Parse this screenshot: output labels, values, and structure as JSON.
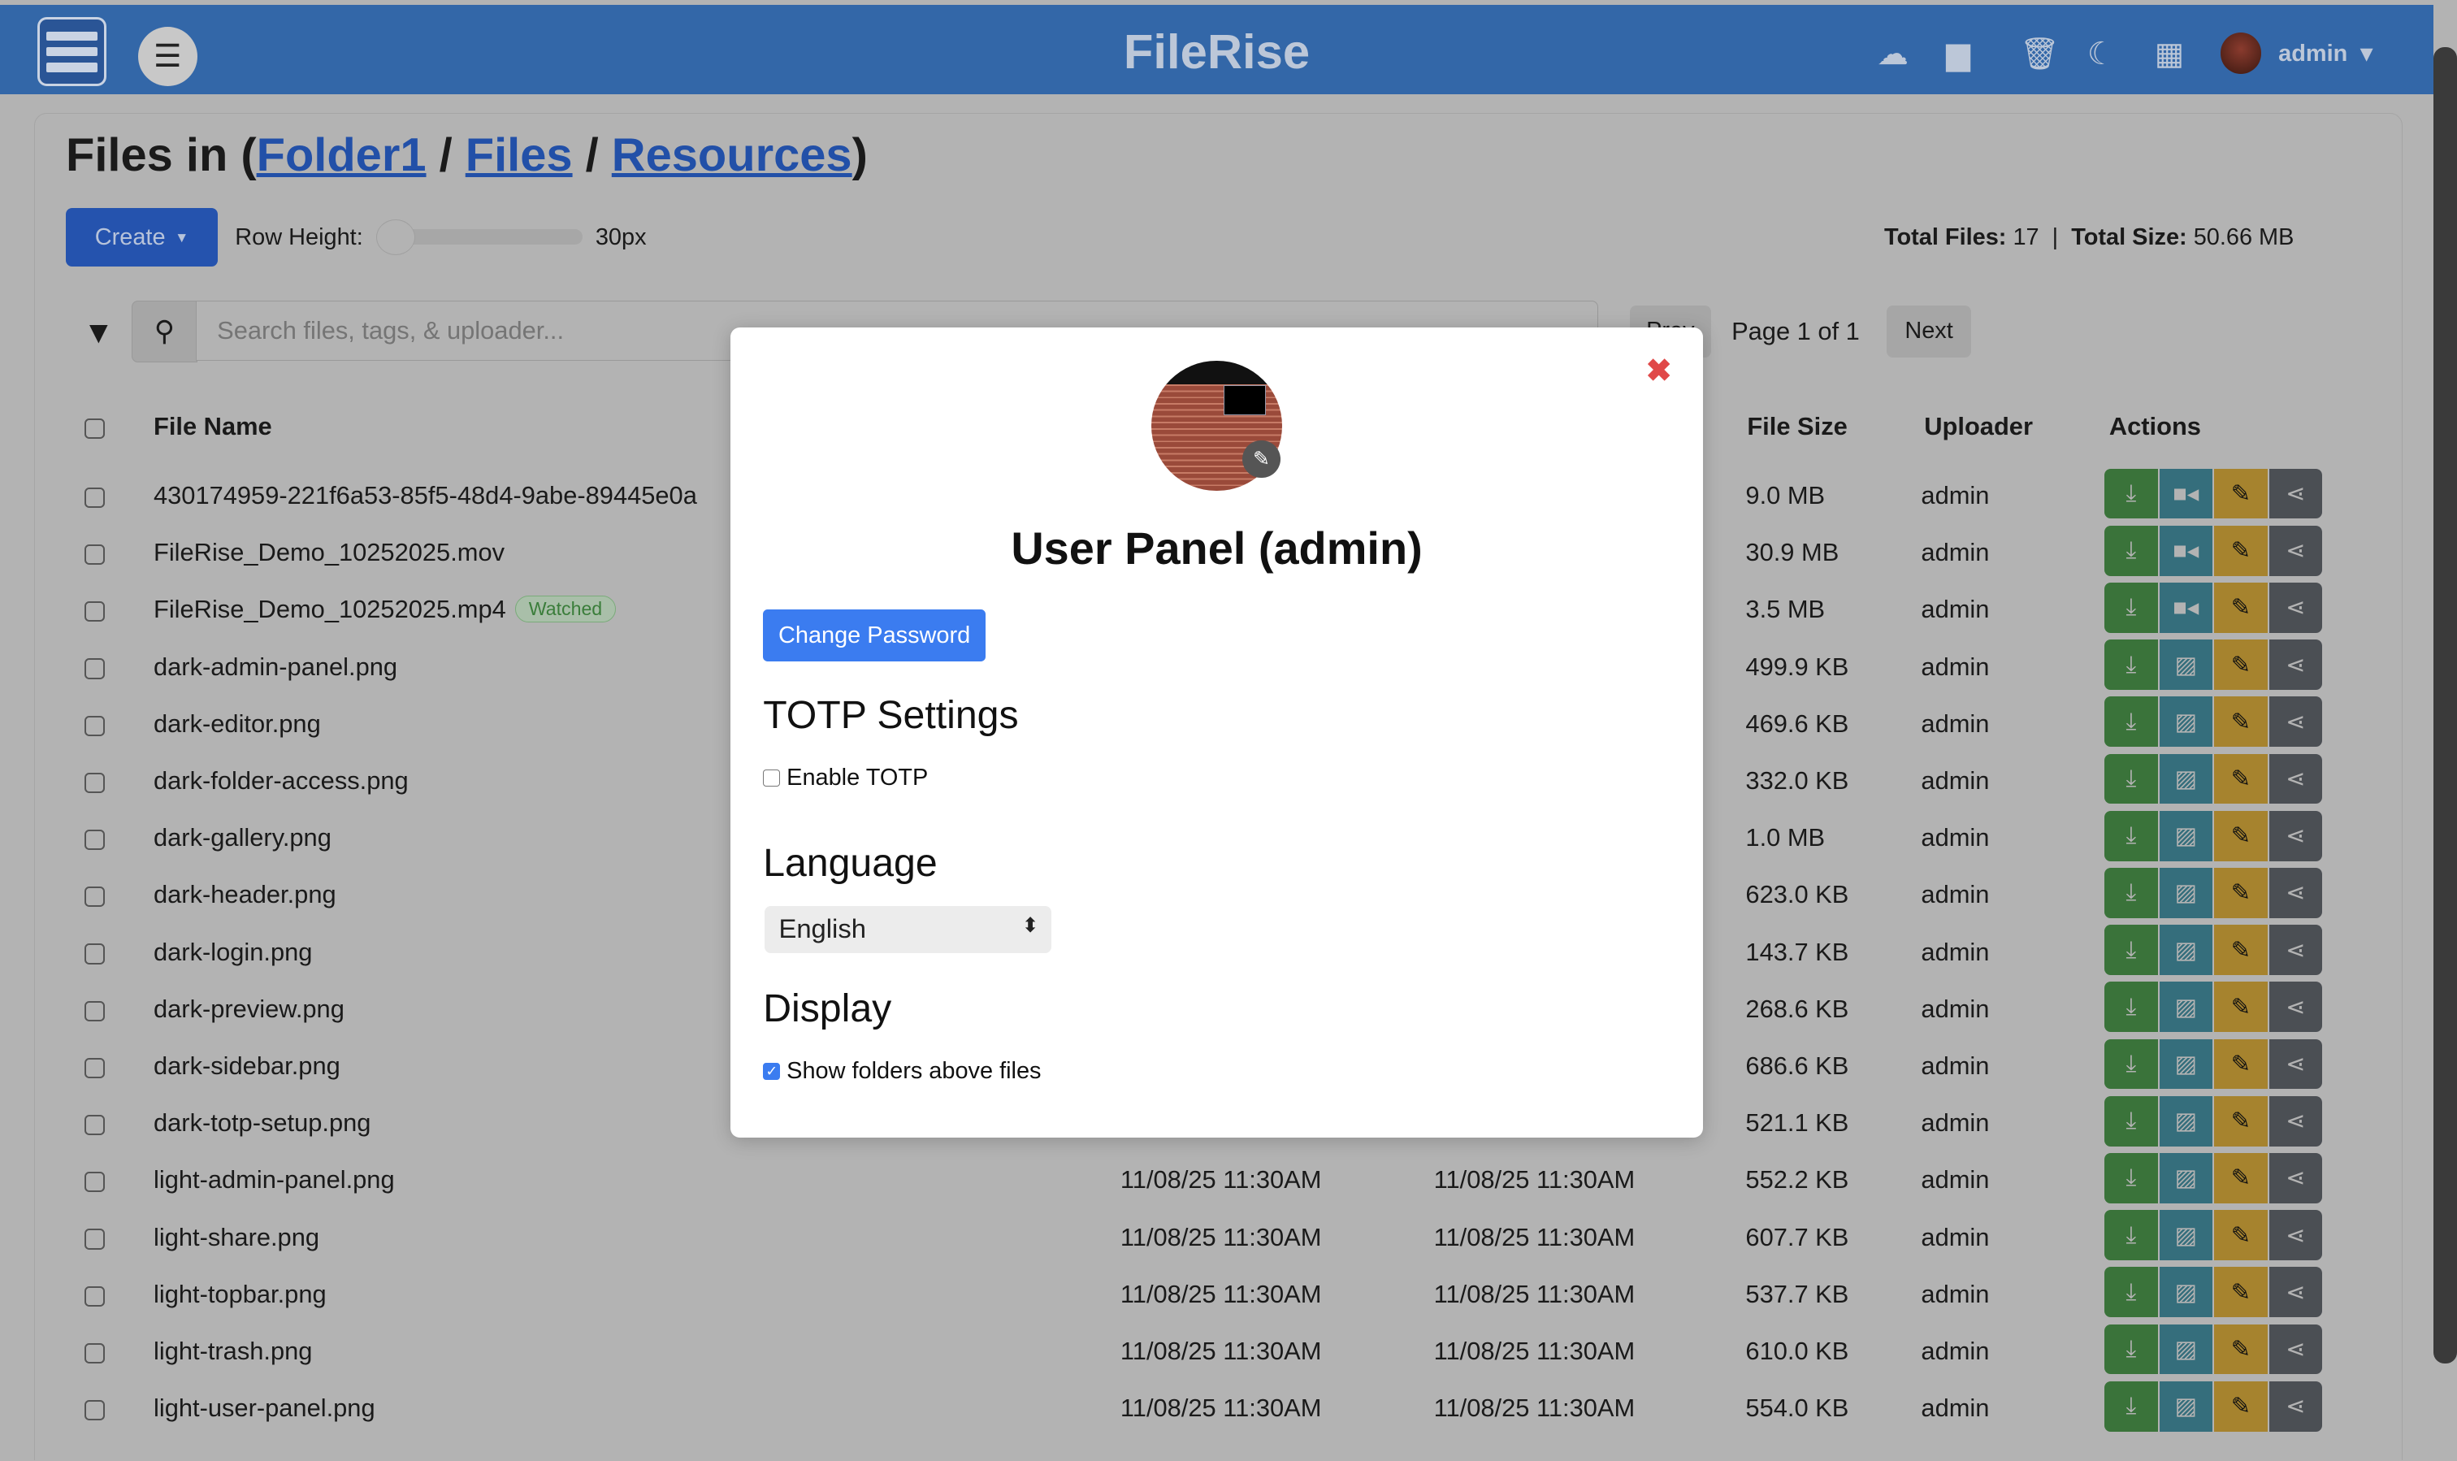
{
  "app": {
    "title": "FileRise",
    "user": "admin"
  },
  "header": {
    "icons": [
      "upload-cloud-icon",
      "folder-icon",
      "trash-icon",
      "moon-icon",
      "grid-icon"
    ]
  },
  "breadcrumb": {
    "prefix": "Files in (",
    "items": [
      "Folder1",
      "Files",
      "Resources"
    ],
    "separator": " / ",
    "suffix": ")"
  },
  "toolbar": {
    "create_label": "Create",
    "row_height_label": "Row Height:",
    "row_height_value": "30px",
    "total_files_label": "Total Files:",
    "total_files": "17",
    "total_size_label": "Total Size:",
    "total_size": "50.66 MB"
  },
  "search": {
    "placeholder": "Search files, tags, & uploader..."
  },
  "pagination": {
    "prev": "Prev",
    "page": "Page 1 of 1",
    "next": "Next"
  },
  "table": {
    "headers": {
      "name": "File Name",
      "size": "File Size",
      "uploader": "Uploader",
      "actions": "Actions"
    },
    "rows": [
      {
        "name": "430174959-221f6a53-85f5-48d4-9abe-89445e0a",
        "size": "9.0 MB",
        "uploader": "admin",
        "type": "video"
      },
      {
        "name": "FileRise_Demo_10252025.mov",
        "size": "30.9 MB",
        "uploader": "admin",
        "type": "video"
      },
      {
        "name": "FileRise_Demo_10252025.mp4",
        "badge": "Watched",
        "size": "3.5 MB",
        "uploader": "admin",
        "type": "video"
      },
      {
        "name": "dark-admin-panel.png",
        "size": "499.9 KB",
        "uploader": "admin",
        "type": "image"
      },
      {
        "name": "dark-editor.png",
        "size": "469.6 KB",
        "uploader": "admin",
        "type": "image"
      },
      {
        "name": "dark-folder-access.png",
        "size": "332.0 KB",
        "uploader": "admin",
        "type": "image"
      },
      {
        "name": "dark-gallery.png",
        "size": "1.0 MB",
        "uploader": "admin",
        "type": "image"
      },
      {
        "name": "dark-header.png",
        "size": "623.0 KB",
        "uploader": "admin",
        "type": "image"
      },
      {
        "name": "dark-login.png",
        "size": "143.7 KB",
        "uploader": "admin",
        "type": "image"
      },
      {
        "name": "dark-preview.png",
        "size": "268.6 KB",
        "uploader": "admin",
        "type": "image"
      },
      {
        "name": "dark-sidebar.png",
        "size": "686.6 KB",
        "uploader": "admin",
        "type": "image"
      },
      {
        "name": "dark-totp-setup.png",
        "size": "521.1 KB",
        "uploader": "admin",
        "type": "image"
      },
      {
        "name": "light-admin-panel.png",
        "created": "11/08/25 11:30AM",
        "modified": "11/08/25 11:30AM",
        "size": "552.2 KB",
        "uploader": "admin",
        "type": "image"
      },
      {
        "name": "light-share.png",
        "created": "11/08/25 11:30AM",
        "modified": "11/08/25 11:30AM",
        "size": "607.7 KB",
        "uploader": "admin",
        "type": "image"
      },
      {
        "name": "light-topbar.png",
        "created": "11/08/25 11:30AM",
        "modified": "11/08/25 11:30AM",
        "size": "537.7 KB",
        "uploader": "admin",
        "type": "image"
      },
      {
        "name": "light-trash.png",
        "created": "11/08/25 11:30AM",
        "modified": "11/08/25 11:30AM",
        "size": "610.0 KB",
        "uploader": "admin",
        "type": "image"
      },
      {
        "name": "light-user-panel.png",
        "created": "11/08/25 11:30AM",
        "modified": "11/08/25 11:30AM",
        "size": "554.0 KB",
        "uploader": "admin",
        "type": "image"
      }
    ]
  },
  "colors": {
    "header": "#3367a8",
    "download": "#3a733a",
    "preview": "#356e7c",
    "edit": "#a6832e",
    "share": "#4b4f54",
    "primary": "#3b7cf0"
  },
  "modal": {
    "title": "User Panel (admin)",
    "change_password": "Change Password",
    "totp_heading": "TOTP Settings",
    "enable_totp": "Enable TOTP",
    "enable_totp_checked": false,
    "language_heading": "Language",
    "language_value": "English",
    "display_heading": "Display",
    "show_folders": "Show folders above files",
    "show_folders_checked": true
  }
}
